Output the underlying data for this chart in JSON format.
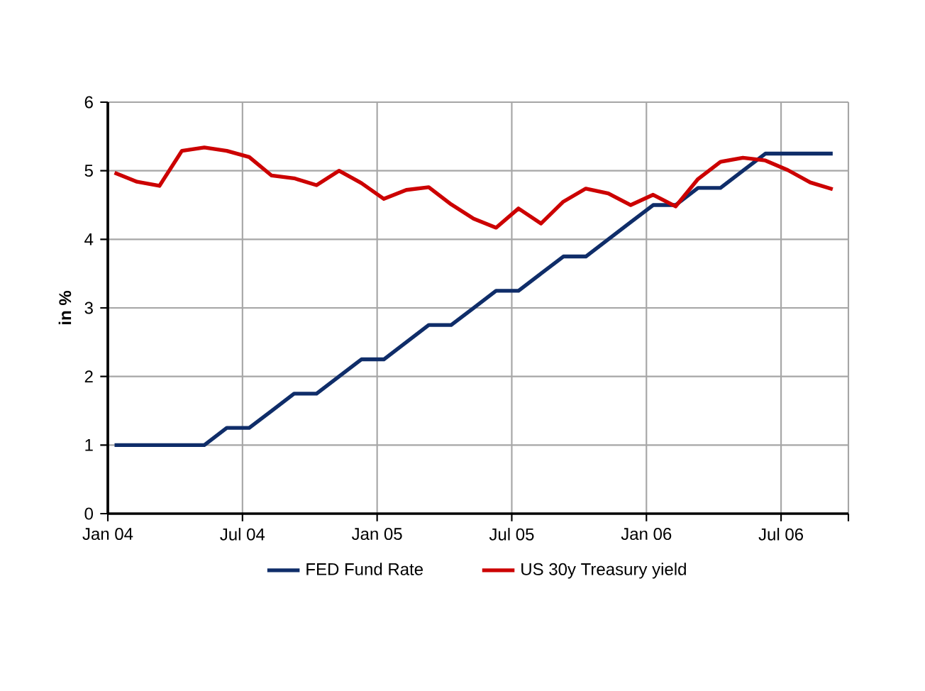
{
  "chart_data": {
    "type": "line",
    "ylabel": "in %",
    "x": [
      "2004-01-10",
      "2004-02-10",
      "2004-03-10",
      "2004-04-10",
      "2004-05-10",
      "2004-06-10",
      "2004-07-10",
      "2004-08-10",
      "2004-09-10",
      "2004-10-10",
      "2004-11-10",
      "2004-12-10",
      "2005-01-10",
      "2005-02-10",
      "2005-03-10",
      "2005-04-10",
      "2005-05-10",
      "2005-06-10",
      "2005-07-10",
      "2005-08-10",
      "2005-09-10",
      "2005-10-10",
      "2005-11-10",
      "2005-12-10",
      "2006-01-10",
      "2006-02-10",
      "2006-03-10",
      "2006-04-10",
      "2006-05-10",
      "2006-06-10",
      "2006-07-10",
      "2006-08-10",
      "2006-09-10"
    ],
    "series": [
      {
        "name": "FED Fund Rate",
        "color": "#0f2d69",
        "values": [
          1,
          1,
          1,
          1,
          1,
          1.25,
          1.25,
          1.5,
          1.75,
          1.75,
          2.0,
          2.25,
          2.25,
          2.5,
          2.75,
          2.75,
          3.0,
          3.25,
          3.25,
          3.5,
          3.75,
          3.75,
          4.0,
          4.25,
          4.5,
          4.5,
          4.75,
          4.75,
          5.0,
          5.25,
          5.25,
          5.25,
          5.25
        ]
      },
      {
        "name": "US 30y Treasury yield",
        "color": "#cc0000",
        "values": [
          4.97,
          4.84,
          4.78,
          5.29,
          5.34,
          5.29,
          5.2,
          4.93,
          4.89,
          4.79,
          5.0,
          4.82,
          4.59,
          4.72,
          4.76,
          4.51,
          4.3,
          4.17,
          4.45,
          4.23,
          4.55,
          4.74,
          4.67,
          4.5,
          4.65,
          4.48,
          4.88,
          5.13,
          5.19,
          5.15,
          5.01,
          4.83,
          4.73
        ]
      }
    ],
    "xlim": [
      "2004-01",
      "2006-10"
    ],
    "xticks": [
      {
        "value": "2004-01",
        "label": "Jan 04"
      },
      {
        "value": "2004-07",
        "label": "Jul 04"
      },
      {
        "value": "2005-01",
        "label": "Jan 05"
      },
      {
        "value": "2005-07",
        "label": "Jul 05"
      },
      {
        "value": "2006-01",
        "label": "Jan 06"
      },
      {
        "value": "2006-07",
        "label": "Jul 06"
      },
      {
        "value": "2006-10",
        "label": null
      }
    ],
    "ylim": [
      0,
      6
    ],
    "yticks": [
      0,
      1,
      2,
      3,
      4,
      5,
      6
    ],
    "grid": true,
    "legend": "bottom",
    "marker": "none",
    "line_style": "solid"
  }
}
